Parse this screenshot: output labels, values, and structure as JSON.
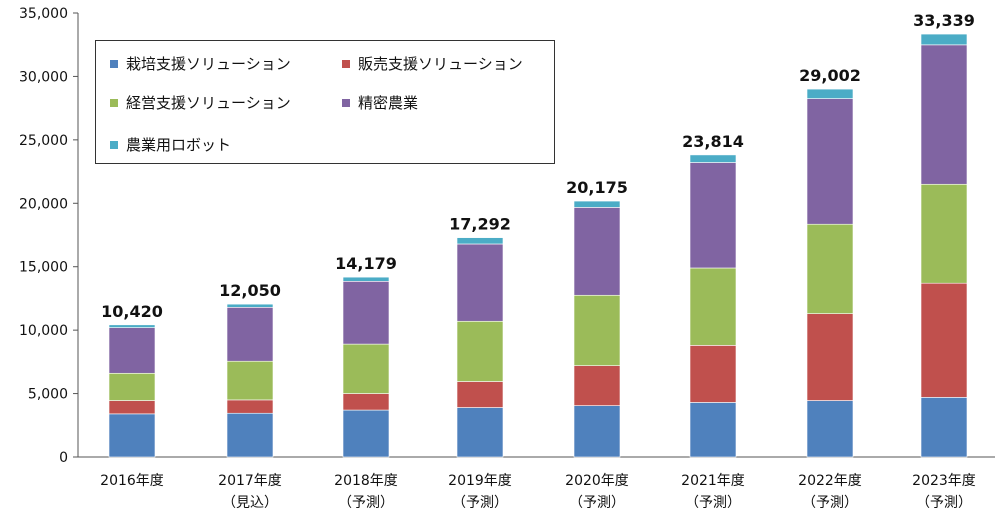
{
  "chart_data": {
    "type": "bar",
    "stacked": true,
    "title": "",
    "xlabel": "",
    "ylabel": "",
    "ylim": [
      0,
      35000
    ],
    "yticks": [
      "0",
      "5,000",
      "10,000",
      "15,000",
      "20,000",
      "25,000",
      "30,000",
      "35,000"
    ],
    "grid": false,
    "legend_position": "top-left",
    "categories": [
      [
        "2016年度",
        ""
      ],
      [
        "2017年度",
        "（見込）"
      ],
      [
        "2018年度",
        "（予測）"
      ],
      [
        "2019年度",
        "（予測）"
      ],
      [
        "2020年度",
        "（予測）"
      ],
      [
        "2021年度",
        "（予測）"
      ],
      [
        "2022年度",
        "（予測）"
      ],
      [
        "2023年度",
        "（予測）"
      ]
    ],
    "series": [
      {
        "name": "栽培支援ソリューション",
        "color": "#4f81bd",
        "values": [
          3400,
          3450,
          3700,
          3900,
          4050,
          4300,
          4450,
          4700
        ]
      },
      {
        "name": "販売支援ソリューション",
        "color": "#c0504d",
        "values": [
          1050,
          1050,
          1300,
          2050,
          3150,
          4500,
          6850,
          9000
        ]
      },
      {
        "name": "経営支援ソリューション",
        "color": "#9bbb59",
        "values": [
          2150,
          3050,
          3900,
          4750,
          5550,
          6100,
          7050,
          7800
        ]
      },
      {
        "name": "精密農業",
        "color": "#8064a2",
        "values": [
          3600,
          4250,
          4950,
          6092,
          6925,
          8314,
          9902,
          10989
        ]
      },
      {
        "name": "農業用ロボット",
        "color": "#4bacc6",
        "values": [
          220,
          250,
          329,
          500,
          500,
          600,
          750,
          850
        ]
      }
    ],
    "totals": [
      10420,
      12050,
      14179,
      17292,
      20175,
      23814,
      29002,
      33339
    ],
    "total_labels": [
      "10,420",
      "12,050",
      "14,179",
      "17,292",
      "20,175",
      "23,814",
      "29,002",
      "33,339"
    ]
  }
}
